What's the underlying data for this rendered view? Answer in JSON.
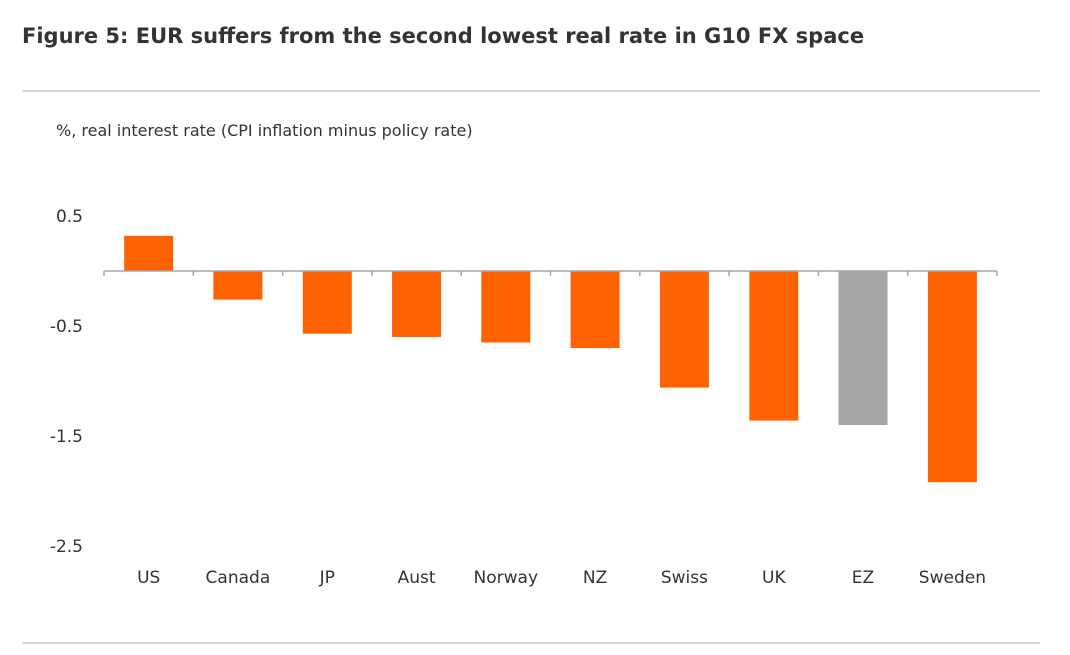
{
  "figure": {
    "title": "Figure 5: EUR suffers from the second lowest real rate in G10 FX space"
  },
  "chart_data": {
    "type": "bar",
    "title": "Figure 5: EUR suffers from the second lowest real rate in G10 FX space",
    "ylabel": "%, real interest rate (CPI inflation minus policy rate)",
    "xlabel": "",
    "categories": [
      "US",
      "Canada",
      "JP",
      "Aust",
      "Norway",
      "NZ",
      "Swiss",
      "UK",
      "EZ",
      "Sweden"
    ],
    "values": [
      0.32,
      -0.26,
      -0.57,
      -0.6,
      -0.65,
      -0.7,
      -1.06,
      -1.36,
      -1.4,
      -1.92
    ],
    "bar_colors": [
      "#ff6200",
      "#ff6200",
      "#ff6200",
      "#ff6200",
      "#ff6200",
      "#ff6200",
      "#ff6200",
      "#ff6200",
      "#a6a6a6",
      "#ff6200"
    ],
    "yticks": [
      0.5,
      -0.5,
      -1.5,
      -2.5
    ],
    "ytick_labels": [
      "0.5",
      "-0.5",
      "-1.5",
      "-2.5"
    ],
    "ylim": [
      -2.5,
      0.5
    ],
    "grid": false,
    "legend": "none"
  },
  "colors": {
    "accent": "#ff6200",
    "highlight": "#a6a6a6",
    "axis": "#a6a6a6",
    "rule": "#d9d9d9",
    "text": "#333333"
  }
}
